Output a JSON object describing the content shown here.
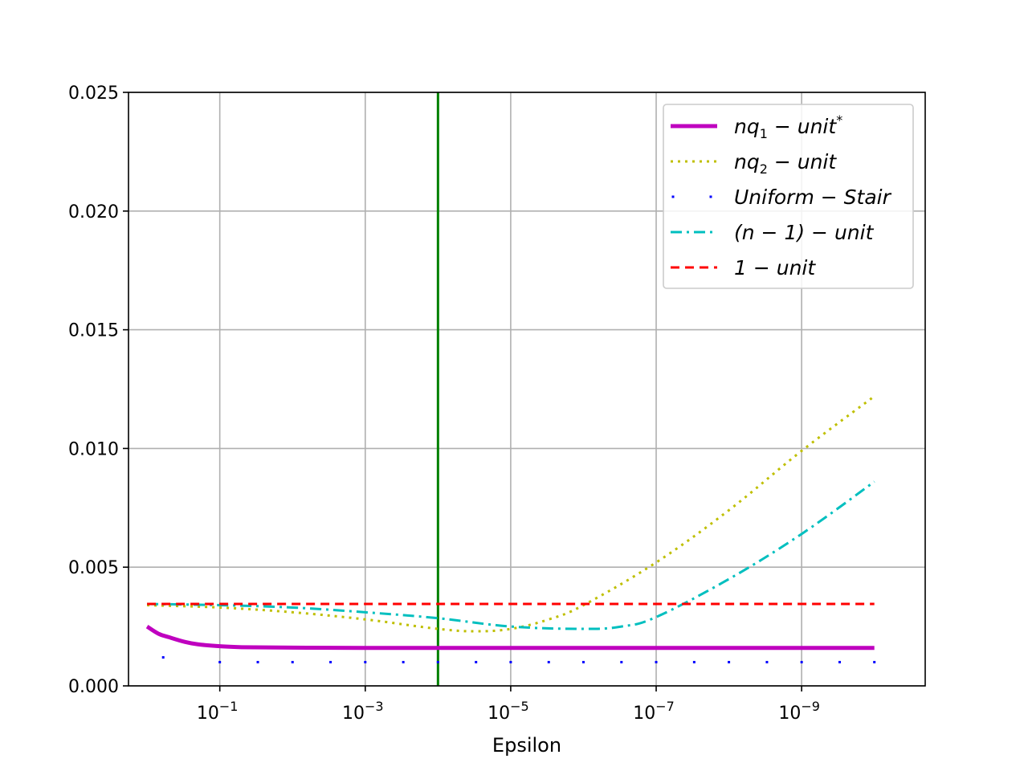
{
  "chart_data": {
    "type": "line",
    "title": "",
    "xlabel": "Epsilon",
    "ylabel": "",
    "xscale": "log",
    "x_direction": "decreasing",
    "xlim": [
      1.8,
      2e-11
    ],
    "ylim": [
      0,
      0.025
    ],
    "grid": true,
    "legend_position": "upper right",
    "y_ticks": [
      {
        "value": 0.0,
        "label": "0.000"
      },
      {
        "value": 0.005,
        "label": "0.005"
      },
      {
        "value": 0.01,
        "label": "0.010"
      },
      {
        "value": 0.015,
        "label": "0.015"
      },
      {
        "value": 0.02,
        "label": "0.020"
      },
      {
        "value": 0.025,
        "label": "0.025"
      }
    ],
    "x_ticks": [
      {
        "value": 0.1,
        "base": "10",
        "exp": "−1"
      },
      {
        "value": 0.001,
        "base": "10",
        "exp": "−3"
      },
      {
        "value": 1e-05,
        "base": "10",
        "exp": "−5"
      },
      {
        "value": 1e-07,
        "base": "10",
        "exp": "−7"
      },
      {
        "value": 1e-09,
        "base": "10",
        "exp": "−9"
      }
    ],
    "vertical_lines": [
      {
        "x": 0.0001,
        "color": "#008000"
      }
    ],
    "series": [
      {
        "name": "nq₁ − unit*",
        "legend_main": "nq",
        "legend_sub": "1",
        "legend_rest": " − unit",
        "legend_sup": "*",
        "color": "#bf00bf",
        "style": "solid",
        "width": 5,
        "points": [
          [
            1.0,
            0.0025
          ],
          [
            0.7,
            0.0022
          ],
          [
            0.5,
            0.00205
          ],
          [
            0.3,
            0.00185
          ],
          [
            0.2,
            0.00175
          ],
          [
            0.1,
            0.00167
          ],
          [
            0.05,
            0.00163
          ],
          [
            0.01,
            0.00161
          ],
          [
            0.001,
            0.0016
          ],
          [
            1e-05,
            0.0016
          ],
          [
            1e-07,
            0.0016
          ],
          [
            1e-09,
            0.0016
          ],
          [
            1e-10,
            0.0016
          ]
        ]
      },
      {
        "name": "nq₂ − unit",
        "legend_main": "nq",
        "legend_sub": "2",
        "legend_rest": " − unit",
        "legend_sup": "",
        "color": "#bfbf00",
        "style": "dotted",
        "width": 3,
        "points": [
          [
            1.0,
            0.0034
          ],
          [
            0.1,
            0.0033
          ],
          [
            0.01,
            0.0031
          ],
          [
            0.001,
            0.0028
          ],
          [
            0.0001,
            0.0024
          ],
          [
            3e-05,
            0.0023
          ],
          [
            1e-05,
            0.0024
          ],
          [
            3e-06,
            0.0028
          ],
          [
            1e-06,
            0.0034
          ],
          [
            1e-07,
            0.0052
          ],
          [
            1e-08,
            0.0074
          ],
          [
            1e-09,
            0.0099
          ],
          [
            1e-10,
            0.0122
          ]
        ]
      },
      {
        "name": "Uniform − Stair",
        "legend_main": "Uniform − Stair",
        "legend_sub": "",
        "legend_rest": "",
        "legend_sup": "",
        "color": "#0000ff",
        "style": "markers",
        "width": 3,
        "points": [
          [
            0.6,
            0.0012
          ],
          [
            0.1,
            0.001
          ],
          [
            0.03,
            0.001
          ],
          [
            0.01,
            0.001
          ],
          [
            0.003,
            0.001
          ],
          [
            0.001,
            0.001
          ],
          [
            0.0003,
            0.001
          ],
          [
            0.0001,
            0.001
          ],
          [
            3e-05,
            0.001
          ],
          [
            1e-05,
            0.001
          ],
          [
            3e-06,
            0.001
          ],
          [
            1e-06,
            0.001
          ],
          [
            3e-07,
            0.001
          ],
          [
            1e-07,
            0.001
          ],
          [
            3e-08,
            0.001
          ],
          [
            1e-08,
            0.001
          ],
          [
            3e-09,
            0.001
          ],
          [
            1e-09,
            0.001
          ],
          [
            3e-10,
            0.001
          ],
          [
            1e-10,
            0.001
          ]
        ]
      },
      {
        "name": "(n − 1) − unit",
        "legend_main": "(n − 1) − unit",
        "legend_sub": "",
        "legend_rest": "",
        "legend_sup": "",
        "color": "#00bfbf",
        "style": "dashdot",
        "width": 3,
        "points": [
          [
            1.0,
            0.00345
          ],
          [
            0.1,
            0.0034
          ],
          [
            0.01,
            0.0033
          ],
          [
            0.001,
            0.0031
          ],
          [
            0.0001,
            0.00285
          ],
          [
            1e-05,
            0.0025
          ],
          [
            1e-06,
            0.0024
          ],
          [
            3e-07,
            0.0025
          ],
          [
            1e-07,
            0.0029
          ],
          [
            1e-08,
            0.0045
          ],
          [
            1e-09,
            0.0064
          ],
          [
            1e-10,
            0.0086
          ]
        ]
      },
      {
        "name": "1 − unit",
        "legend_main": "1 − unit",
        "legend_sub": "",
        "legend_rest": "",
        "legend_sup": "",
        "color": "#ff0000",
        "style": "dashed",
        "width": 3,
        "points": [
          [
            1.0,
            0.00345
          ],
          [
            1e-10,
            0.00345
          ]
        ]
      }
    ]
  }
}
